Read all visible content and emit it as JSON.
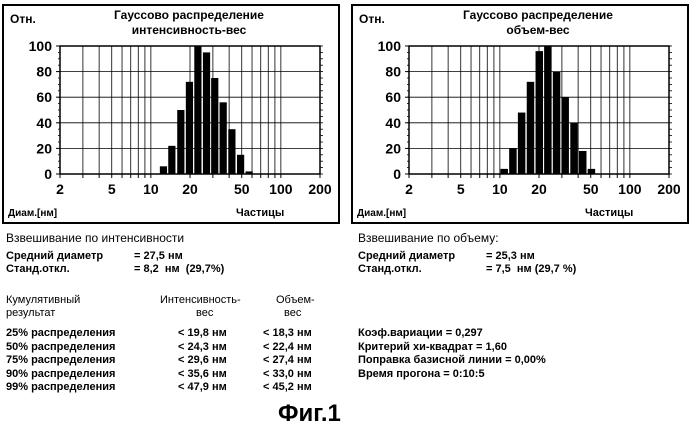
{
  "charts": [
    {
      "ylabel": "Отн.",
      "title_line1": "Гауссово распределение",
      "title_line2": "интенсивность-вес",
      "xlabel": "Диам.[нм]",
      "legend": "Частицы"
    },
    {
      "ylabel": "Отн.",
      "title_line1": "Гауссово распределение",
      "title_line2": "объем-вес",
      "xlabel": "Диам.[нм]",
      "legend": "Частицы"
    }
  ],
  "chart_data": [
    {
      "type": "bar",
      "xscale": "log",
      "xlim": [
        2,
        200
      ],
      "ylim": [
        0,
        100
      ],
      "yticks": [
        "0",
        "20",
        "40",
        "60",
        "80",
        "100"
      ],
      "xticks": [
        "2",
        "5",
        "10",
        "20",
        "50",
        "100",
        "200"
      ],
      "bars": [
        {
          "x": 12.5,
          "y": 6
        },
        {
          "x": 14.5,
          "y": 22
        },
        {
          "x": 17,
          "y": 50
        },
        {
          "x": 19.8,
          "y": 72
        },
        {
          "x": 23,
          "y": 100
        },
        {
          "x": 26.8,
          "y": 95
        },
        {
          "x": 31,
          "y": 75
        },
        {
          "x": 36,
          "y": 56
        },
        {
          "x": 42,
          "y": 35
        },
        {
          "x": 49,
          "y": 15
        },
        {
          "x": 57,
          "y": 2
        }
      ]
    },
    {
      "type": "bar",
      "xscale": "log",
      "xlim": [
        2,
        200
      ],
      "ylim": [
        0,
        100
      ],
      "yticks": [
        "0",
        "20",
        "40",
        "60",
        "80",
        "100"
      ],
      "xticks": [
        "2",
        "5",
        "10",
        "20",
        "50",
        "100",
        "200"
      ],
      "bars": [
        {
          "x": 10.8,
          "y": 4
        },
        {
          "x": 12.6,
          "y": 20
        },
        {
          "x": 14.7,
          "y": 48
        },
        {
          "x": 17.2,
          "y": 72
        },
        {
          "x": 20.1,
          "y": 96
        },
        {
          "x": 23.4,
          "y": 100
        },
        {
          "x": 27.3,
          "y": 80
        },
        {
          "x": 31.8,
          "y": 60
        },
        {
          "x": 37.2,
          "y": 40
        },
        {
          "x": 43.4,
          "y": 18
        },
        {
          "x": 50.6,
          "y": 4
        }
      ]
    }
  ],
  "left_stats": {
    "header": "Взвешивание по интенсивности",
    "row1_label": "Средний диаметр",
    "row1_value": "= 27,5 нм",
    "row2_label": "Станд.откл.",
    "row2_value": "= 8,2  нм  (29,7%)"
  },
  "right_stats": {
    "header": "Взвешивание по объему:",
    "row1_label": "Средний диаметр",
    "row1_value": "= 25,3 нм",
    "row2_label": "Станд.откл.",
    "row2_value": "= 7,5  нм (29,7 %)"
  },
  "cumulative": {
    "label_line1": "Кумулятивный",
    "label_line2": "результат",
    "col1_line1": "Интенсивность-",
    "col1_line2": "вес",
    "col2_line1": "Объем-",
    "col2_line2": "вес",
    "rows": [
      {
        "label": "25% распределения",
        "v1": "< 19,8 нм",
        "v2": "< 18,3 нм"
      },
      {
        "label": "50% распределения",
        "v1": "< 24,3 нм",
        "v2": "< 22,4 нм"
      },
      {
        "label": "75% распределения",
        "v1": "< 29,6 нм",
        "v2": "< 27,4 нм"
      },
      {
        "label": "90% распределения",
        "v1": "< 35,6 нм",
        "v2": "< 33,0 нм"
      },
      {
        "label": "99% распределения",
        "v1": "< 47,9 нм",
        "v2": "< 45,2 нм"
      }
    ]
  },
  "extra": [
    "Коэф.вариации = 0,297",
    "Критерий хи-квадрат = 1,60",
    "Поправка базисной линии = 0,00%",
    "Время прогона = 0:10:5"
  ],
  "figure_caption": "Фиг.1"
}
